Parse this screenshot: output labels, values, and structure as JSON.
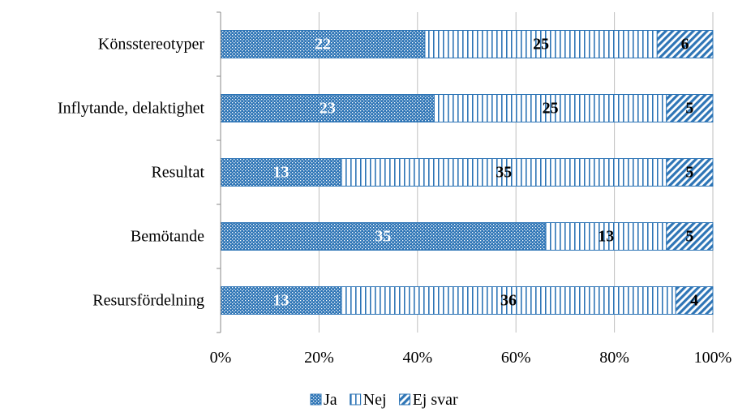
{
  "chart_data": {
    "type": "bar",
    "orientation": "horizontal",
    "stacked": "percent",
    "categories": [
      "Könsstereotyper",
      "Inflytande, delaktighet",
      "Resultat",
      "Bemötande",
      "Resursfördelning"
    ],
    "series": [
      {
        "name": "Ja",
        "values": [
          22,
          23,
          13,
          35,
          13
        ]
      },
      {
        "name": "Nej",
        "values": [
          25,
          25,
          35,
          13,
          36
        ]
      },
      {
        "name": "Ej svar",
        "values": [
          6,
          5,
          5,
          5,
          4
        ]
      }
    ],
    "xlim": [
      0,
      100
    ],
    "xticks": [
      "0%",
      "20%",
      "40%",
      "60%",
      "80%",
      "100%"
    ],
    "title": "",
    "xlabel": "",
    "ylabel": "",
    "grid": "vertical",
    "legend": "bottom"
  },
  "colors": {
    "accent": "#2E75B6",
    "grid": "#bfbfbf",
    "axis": "#888888",
    "label_on_dark": "#ffffff",
    "label_on_light": "#000000"
  }
}
